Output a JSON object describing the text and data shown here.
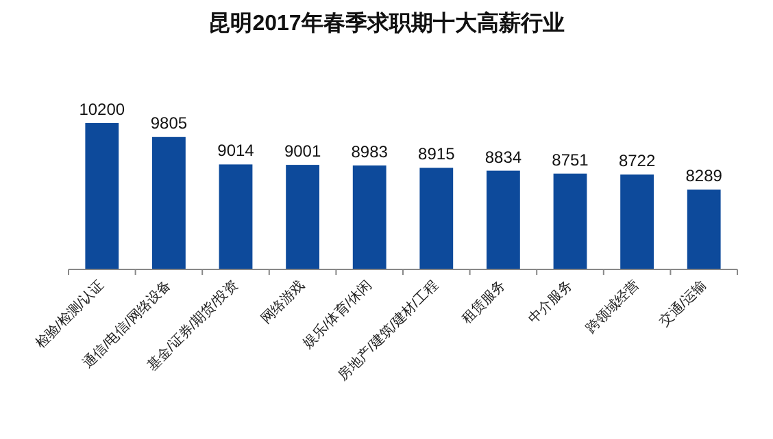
{
  "chart_data": {
    "type": "bar",
    "title": "昆明2017年春季求职期十大高薪行业",
    "categories": [
      "检验/检测/认证",
      "通信/电信/网络设备",
      "基金/证券/期货/投资",
      "网络游戏",
      "娱乐/体育/休闲",
      "房地产/建筑/建材/工程",
      "租赁服务",
      "中介服务",
      "跨领域经营",
      "交通/运输"
    ],
    "values": [
      10200,
      9805,
      9014,
      9001,
      8983,
      8915,
      8834,
      8751,
      8722,
      8289
    ],
    "color": "#0d4a9b",
    "ylim": [
      6000,
      10200
    ],
    "tick_labels": "x",
    "data_labels": true
  }
}
